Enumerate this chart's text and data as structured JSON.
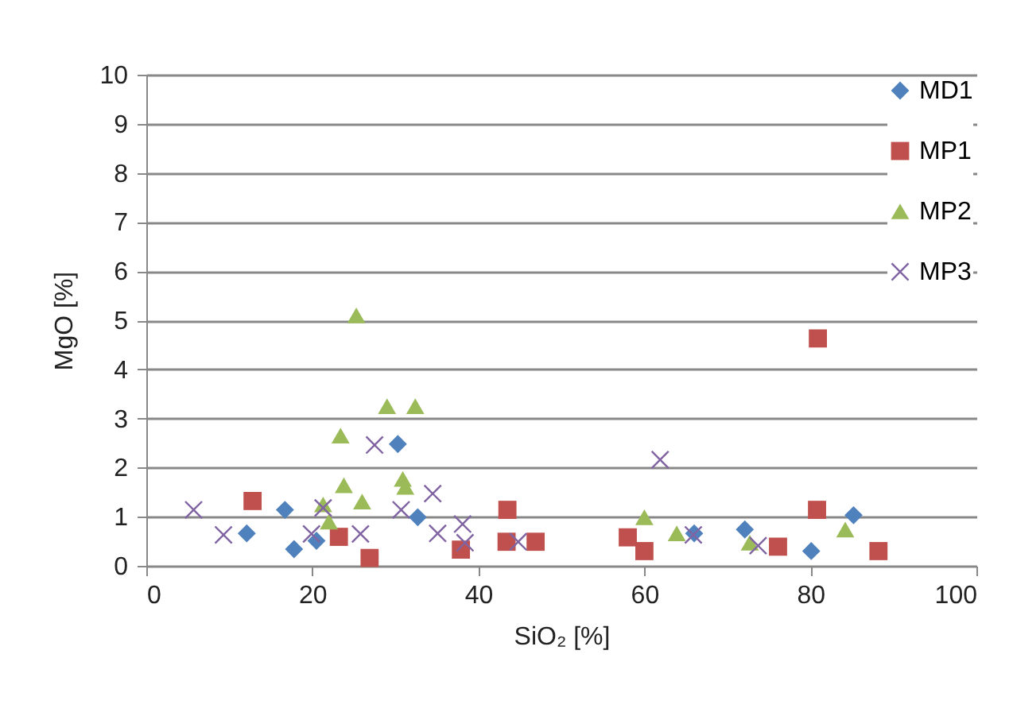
{
  "chart_data": {
    "type": "scatter",
    "xlabel": "SiO₂ [%]",
    "ylabel": "MgO [%]",
    "xlim": [
      0,
      100
    ],
    "xticks": [
      0,
      20,
      40,
      60,
      80,
      100
    ],
    "ylim": [
      0,
      10
    ],
    "yticks": [
      0,
      1,
      2,
      3,
      4,
      5,
      6,
      7,
      8,
      9,
      10
    ],
    "grid": "y",
    "legend": "top right",
    "series": [
      {
        "name": "MD1",
        "color": "#4f81bd",
        "marker": "diamond",
        "x": [
          12.1,
          16.7,
          17.8,
          20.5,
          30.3,
          32.7,
          66,
          72.1,
          80.1,
          85.2
        ],
        "values": [
          0.66,
          1.14,
          0.34,
          0.51,
          2.48,
          0.99,
          0.66,
          0.74,
          0.3,
          1.03
        ]
      },
      {
        "name": "MP1",
        "color": "#c0504d",
        "marker": "square",
        "x": [
          12.8,
          23.2,
          26.9,
          37.9,
          43.5,
          43.4,
          46.9,
          58,
          60,
          76.1,
          80.8,
          80.9,
          88.2
        ],
        "values": [
          1.32,
          0.59,
          0.16,
          0.33,
          1.14,
          0.49,
          0.49,
          0.58,
          0.3,
          0.39,
          1.14,
          4.63,
          0.3
        ]
      },
      {
        "name": "MP2",
        "color": "#9bbb59",
        "marker": "triangle",
        "x": [
          21.3,
          22,
          23.8,
          23.4,
          25.3,
          26,
          29,
          32.4,
          30.9,
          31.2,
          60,
          63.9,
          72.7,
          84.2
        ],
        "values": [
          1.25,
          0.9,
          1.64,
          2.65,
          5.1,
          1.31,
          3.25,
          3.25,
          1.77,
          1.61,
          0.99,
          0.66,
          0.47,
          0.74
        ]
      },
      {
        "name": "MP3",
        "color": "#8064a2",
        "marker": "cross",
        "x": [
          5.7,
          9.3,
          19.9,
          21.3,
          25.8,
          27.5,
          30.7,
          34.5,
          35.1,
          38.1,
          38.4,
          44.8,
          61.9,
          65.9,
          73.7
        ],
        "values": [
          1.14,
          0.63,
          0.65,
          1.18,
          0.65,
          2.46,
          1.14,
          1.47,
          0.66,
          0.85,
          0.47,
          0.49,
          2.16,
          0.63,
          0.41
        ]
      }
    ]
  }
}
